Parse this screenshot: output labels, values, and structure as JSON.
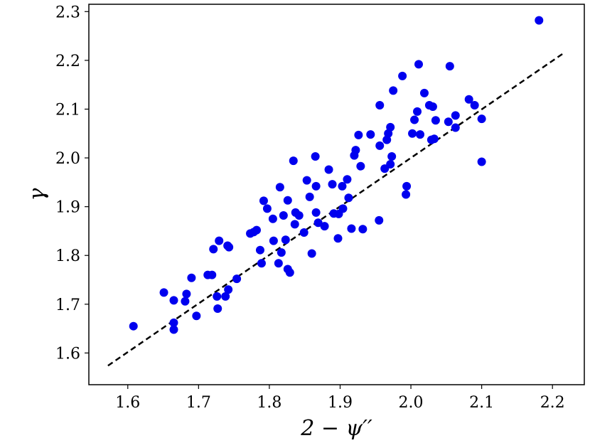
{
  "chart_data": {
    "type": "scatter",
    "xlabel": "2 − ψ′′",
    "ylabel": "γ",
    "xlim": [
      1.545,
      2.245
    ],
    "ylim": [
      1.535,
      2.315
    ],
    "x_ticks": [
      1.6,
      1.7,
      1.8,
      1.9,
      2.0,
      2.1,
      2.2
    ],
    "x_tick_labels": [
      "1.6",
      "1.7",
      "1.8",
      "1.9",
      "2.0",
      "2.1",
      "2.2"
    ],
    "y_ticks": [
      1.6,
      1.7,
      1.8,
      1.9,
      2.0,
      2.1,
      2.2,
      2.3
    ],
    "y_tick_labels": [
      "1.6",
      "1.7",
      "1.8",
      "1.9",
      "2.0",
      "2.1",
      "2.2",
      "2.3"
    ],
    "grid": false,
    "point_color": "#0000ee",
    "fit_line": {
      "x": [
        1.572,
        2.217
      ],
      "y": [
        1.574,
        2.216
      ],
      "color": "#000000",
      "style": "dashed"
    },
    "points": [
      {
        "x": 1.608,
        "y": 1.655
      },
      {
        "x": 1.651,
        "y": 1.724
      },
      {
        "x": 1.665,
        "y": 1.708
      },
      {
        "x": 1.665,
        "y": 1.662
      },
      {
        "x": 1.665,
        "y": 1.648
      },
      {
        "x": 1.681,
        "y": 1.706
      },
      {
        "x": 1.683,
        "y": 1.721
      },
      {
        "x": 1.69,
        "y": 1.754
      },
      {
        "x": 1.697,
        "y": 1.676
      },
      {
        "x": 1.713,
        "y": 1.76
      },
      {
        "x": 1.719,
        "y": 1.76
      },
      {
        "x": 1.721,
        "y": 1.813
      },
      {
        "x": 1.726,
        "y": 1.716
      },
      {
        "x": 1.727,
        "y": 1.691
      },
      {
        "x": 1.729,
        "y": 1.83
      },
      {
        "x": 1.738,
        "y": 1.716
      },
      {
        "x": 1.742,
        "y": 1.73
      },
      {
        "x": 1.741,
        "y": 1.82
      },
      {
        "x": 1.743,
        "y": 1.817
      },
      {
        "x": 1.754,
        "y": 1.752
      },
      {
        "x": 1.773,
        "y": 1.845
      },
      {
        "x": 1.778,
        "y": 1.848
      },
      {
        "x": 1.782,
        "y": 1.852
      },
      {
        "x": 1.787,
        "y": 1.811
      },
      {
        "x": 1.789,
        "y": 1.784
      },
      {
        "x": 1.792,
        "y": 1.912
      },
      {
        "x": 1.797,
        "y": 1.896
      },
      {
        "x": 1.805,
        "y": 1.875
      },
      {
        "x": 1.806,
        "y": 1.83
      },
      {
        "x": 1.813,
        "y": 1.784
      },
      {
        "x": 1.815,
        "y": 1.94
      },
      {
        "x": 1.817,
        "y": 1.806
      },
      {
        "x": 1.82,
        "y": 1.882
      },
      {
        "x": 1.823,
        "y": 1.832
      },
      {
        "x": 1.826,
        "y": 1.913
      },
      {
        "x": 1.826,
        "y": 1.772
      },
      {
        "x": 1.829,
        "y": 1.765
      },
      {
        "x": 1.834,
        "y": 1.994
      },
      {
        "x": 1.836,
        "y": 1.864
      },
      {
        "x": 1.837,
        "y": 1.888
      },
      {
        "x": 1.842,
        "y": 1.882
      },
      {
        "x": 1.849,
        "y": 1.847
      },
      {
        "x": 1.853,
        "y": 1.954
      },
      {
        "x": 1.857,
        "y": 1.92
      },
      {
        "x": 1.86,
        "y": 1.804
      },
      {
        "x": 1.865,
        "y": 2.003
      },
      {
        "x": 1.866,
        "y": 1.942
      },
      {
        "x": 1.866,
        "y": 1.888
      },
      {
        "x": 1.869,
        "y": 1.867
      },
      {
        "x": 1.878,
        "y": 1.86
      },
      {
        "x": 1.884,
        "y": 1.976
      },
      {
        "x": 1.889,
        "y": 1.946
      },
      {
        "x": 1.891,
        "y": 1.886
      },
      {
        "x": 1.897,
        "y": 1.835
      },
      {
        "x": 1.898,
        "y": 1.885
      },
      {
        "x": 1.903,
        "y": 1.942
      },
      {
        "x": 1.904,
        "y": 1.896
      },
      {
        "x": 1.91,
        "y": 1.956
      },
      {
        "x": 1.912,
        "y": 1.918
      },
      {
        "x": 1.916,
        "y": 1.855
      },
      {
        "x": 1.92,
        "y": 2.005
      },
      {
        "x": 1.922,
        "y": 2.016
      },
      {
        "x": 1.926,
        "y": 2.047
      },
      {
        "x": 1.929,
        "y": 1.983
      },
      {
        "x": 1.932,
        "y": 1.854
      },
      {
        "x": 1.943,
        "y": 2.048
      },
      {
        "x": 1.955,
        "y": 1.872
      },
      {
        "x": 1.956,
        "y": 2.025
      },
      {
        "x": 1.956,
        "y": 2.108
      },
      {
        "x": 1.963,
        "y": 1.978
      },
      {
        "x": 1.966,
        "y": 2.037
      },
      {
        "x": 1.968,
        "y": 2.05
      },
      {
        "x": 1.971,
        "y": 2.063
      },
      {
        "x": 1.971,
        "y": 1.987
      },
      {
        "x": 1.973,
        "y": 2.003
      },
      {
        "x": 1.975,
        "y": 2.138
      },
      {
        "x": 1.988,
        "y": 2.168
      },
      {
        "x": 1.993,
        "y": 1.925
      },
      {
        "x": 1.994,
        "y": 1.942
      },
      {
        "x": 2.002,
        "y": 2.05
      },
      {
        "x": 2.005,
        "y": 2.078
      },
      {
        "x": 2.009,
        "y": 2.095
      },
      {
        "x": 2.011,
        "y": 2.192
      },
      {
        "x": 2.013,
        "y": 2.048
      },
      {
        "x": 2.019,
        "y": 2.133
      },
      {
        "x": 2.026,
        "y": 2.108
      },
      {
        "x": 2.029,
        "y": 2.037
      },
      {
        "x": 2.031,
        "y": 2.105
      },
      {
        "x": 2.033,
        "y": 2.039
      },
      {
        "x": 2.035,
        "y": 2.077
      },
      {
        "x": 2.053,
        "y": 2.074
      },
      {
        "x": 2.055,
        "y": 2.188
      },
      {
        "x": 2.063,
        "y": 2.087
      },
      {
        "x": 2.063,
        "y": 2.062
      },
      {
        "x": 2.082,
        "y": 2.12
      },
      {
        "x": 2.09,
        "y": 2.108
      },
      {
        "x": 2.1,
        "y": 2.08
      },
      {
        "x": 2.1,
        "y": 1.992
      },
      {
        "x": 2.181,
        "y": 2.282
      }
    ]
  }
}
